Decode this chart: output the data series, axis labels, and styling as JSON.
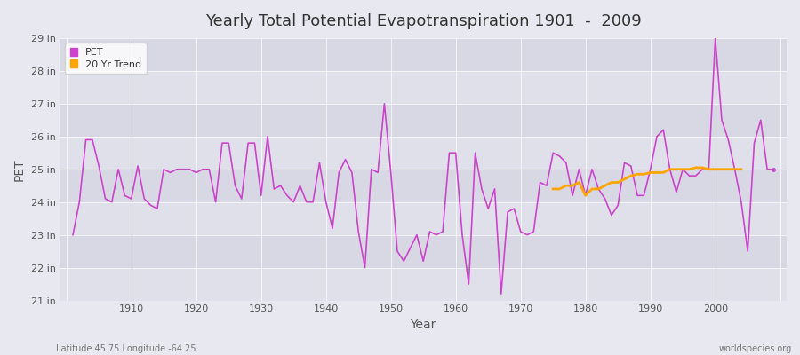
{
  "title": "Yearly Total Potential Evapotranspiration 1901  -  2009",
  "xlabel": "Year",
  "ylabel": "PET",
  "footnote_left": "Latitude 45.75 Longitude -64.25",
  "footnote_right": "worldspecies.org",
  "pet_color": "#cc44cc",
  "trend_color": "#FFA500",
  "background_color": "#e8e8f0",
  "grid_color_light": "#d8d8e8",
  "grid_color_dark": "#ccccdd",
  "ylim_min": 21,
  "ylim_max": 29,
  "years": [
    1901,
    1902,
    1903,
    1904,
    1905,
    1906,
    1907,
    1908,
    1909,
    1910,
    1911,
    1912,
    1913,
    1914,
    1915,
    1916,
    1917,
    1918,
    1919,
    1920,
    1921,
    1922,
    1923,
    1924,
    1925,
    1926,
    1927,
    1928,
    1929,
    1930,
    1931,
    1932,
    1933,
    1934,
    1935,
    1936,
    1937,
    1938,
    1939,
    1940,
    1941,
    1942,
    1943,
    1944,
    1945,
    1946,
    1947,
    1948,
    1949,
    1950,
    1951,
    1952,
    1953,
    1954,
    1955,
    1956,
    1957,
    1958,
    1959,
    1960,
    1961,
    1962,
    1963,
    1964,
    1965,
    1966,
    1967,
    1968,
    1969,
    1970,
    1971,
    1972,
    1973,
    1974,
    1975,
    1976,
    1977,
    1978,
    1979,
    1980,
    1981,
    1982,
    1983,
    1984,
    1985,
    1986,
    1987,
    1988,
    1989,
    1990,
    1991,
    1992,
    1993,
    1994,
    1995,
    1996,
    1997,
    1998,
    1999,
    2000,
    2001,
    2002,
    2003,
    2004,
    2005,
    2006,
    2007,
    2008,
    2009
  ],
  "pet_values": [
    23.0,
    24.0,
    25.9,
    25.9,
    25.1,
    24.1,
    24.0,
    25.0,
    24.2,
    24.1,
    25.1,
    24.1,
    23.9,
    23.8,
    25.0,
    24.9,
    25.0,
    25.0,
    25.0,
    24.9,
    25.0,
    25.0,
    24.0,
    25.8,
    25.8,
    24.5,
    24.1,
    25.8,
    25.8,
    24.2,
    26.0,
    24.4,
    24.5,
    24.2,
    24.0,
    24.5,
    24.0,
    24.0,
    25.2,
    24.0,
    23.2,
    24.9,
    25.3,
    24.9,
    23.1,
    22.0,
    25.0,
    24.9,
    27.0,
    24.9,
    22.5,
    22.2,
    22.6,
    23.0,
    22.2,
    23.1,
    23.0,
    23.1,
    25.5,
    25.5,
    23.0,
    21.5,
    25.5,
    24.4,
    23.8,
    24.4,
    21.2,
    23.7,
    23.8,
    23.1,
    23.0,
    23.1,
    24.6,
    24.5,
    25.5,
    25.4,
    25.2,
    24.2,
    25.0,
    24.2,
    25.0,
    24.4,
    24.1,
    23.6,
    23.9,
    25.2,
    25.1,
    24.2,
    24.2,
    25.0,
    26.0,
    26.2,
    25.0,
    24.3,
    25.0,
    24.8,
    24.8,
    25.0,
    25.0,
    29.0,
    26.5,
    25.9,
    25.0,
    24.0,
    22.5,
    25.8,
    26.5,
    25.0,
    25.0
  ],
  "trend_years": [
    1975,
    1976,
    1977,
    1978,
    1979,
    1980,
    1981,
    1982,
    1983,
    1984,
    1985,
    1986,
    1987,
    1988,
    1989,
    1990,
    1991,
    1992,
    1993,
    1994,
    1995,
    1996,
    1997,
    1998,
    1999,
    2000,
    2001,
    2002,
    2003,
    2004
  ],
  "trend_values": [
    24.4,
    24.4,
    24.5,
    24.5,
    24.6,
    24.2,
    24.4,
    24.4,
    24.5,
    24.6,
    24.6,
    24.7,
    24.8,
    24.85,
    24.85,
    24.9,
    24.9,
    24.9,
    25.0,
    25.0,
    25.0,
    25.0,
    25.05,
    25.05,
    25.0,
    25.0,
    25.0,
    25.0,
    25.0,
    25.0
  ],
  "band_colors": [
    "#e0e0ea",
    "#d8d8e4"
  ],
  "yticks": [
    21,
    22,
    23,
    24,
    25,
    26,
    27,
    28,
    29
  ]
}
